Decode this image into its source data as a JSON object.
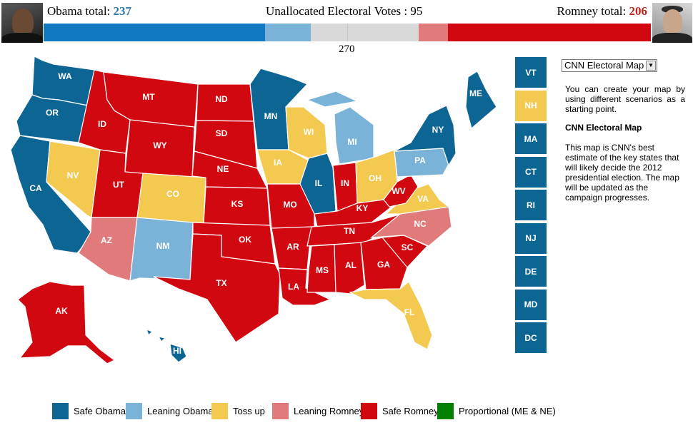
{
  "header": {
    "obama_label": "Obama total:",
    "obama_total": "237",
    "unallocated_label": "Unallocated Electoral Votes :",
    "unallocated_value": "95",
    "romney_label": "Romney total:",
    "romney_total": "206",
    "threshold_label": "270"
  },
  "colors": {
    "safe_obama": "#0d6593",
    "leaning_obama": "#7bb3d8",
    "toss_up": "#f3c94f",
    "leaning_romney": "#e17b7b",
    "safe_romney": "#d10810",
    "proportional": "#008000",
    "obama_total_text": "#2f7bb0",
    "romney_total_text": "#c0241c",
    "bar_safe_obama": "#1179c1",
    "bar_unallocated": "#d9d9d9"
  },
  "vote_bar": {
    "total_votes": 538,
    "segments": [
      {
        "category": "safe_obama",
        "votes": 196
      },
      {
        "category": "leaning_obama",
        "votes": 41
      },
      {
        "category": "toss_up",
        "votes": 95
      },
      {
        "category": "leaning_romney",
        "votes": 26
      },
      {
        "category": "safe_romney",
        "votes": 180
      }
    ]
  },
  "states": [
    {
      "abbr": "WA",
      "category": "safe_obama"
    },
    {
      "abbr": "OR",
      "category": "safe_obama"
    },
    {
      "abbr": "CA",
      "category": "safe_obama"
    },
    {
      "abbr": "NV",
      "category": "toss_up"
    },
    {
      "abbr": "ID",
      "category": "safe_romney"
    },
    {
      "abbr": "MT",
      "category": "safe_romney"
    },
    {
      "abbr": "WY",
      "category": "safe_romney"
    },
    {
      "abbr": "UT",
      "category": "safe_romney"
    },
    {
      "abbr": "AZ",
      "category": "leaning_romney"
    },
    {
      "abbr": "CO",
      "category": "toss_up"
    },
    {
      "abbr": "NM",
      "category": "leaning_obama"
    },
    {
      "abbr": "ND",
      "category": "safe_romney"
    },
    {
      "abbr": "SD",
      "category": "safe_romney"
    },
    {
      "abbr": "NE",
      "category": "safe_romney"
    },
    {
      "abbr": "KS",
      "category": "safe_romney"
    },
    {
      "abbr": "OK",
      "category": "safe_romney"
    },
    {
      "abbr": "TX",
      "category": "safe_romney"
    },
    {
      "abbr": "MN",
      "category": "safe_obama"
    },
    {
      "abbr": "IA",
      "category": "toss_up"
    },
    {
      "abbr": "MO",
      "category": "safe_romney"
    },
    {
      "abbr": "AR",
      "category": "safe_romney"
    },
    {
      "abbr": "LA",
      "category": "safe_romney"
    },
    {
      "abbr": "WI",
      "category": "toss_up"
    },
    {
      "abbr": "IL",
      "category": "safe_obama"
    },
    {
      "abbr": "MI",
      "category": "leaning_obama"
    },
    {
      "abbr": "IN",
      "category": "safe_romney"
    },
    {
      "abbr": "OH",
      "category": "toss_up"
    },
    {
      "abbr": "KY",
      "category": "safe_romney"
    },
    {
      "abbr": "TN",
      "category": "safe_romney"
    },
    {
      "abbr": "MS",
      "category": "safe_romney"
    },
    {
      "abbr": "AL",
      "category": "safe_romney"
    },
    {
      "abbr": "GA",
      "category": "safe_romney"
    },
    {
      "abbr": "FL",
      "category": "toss_up"
    },
    {
      "abbr": "SC",
      "category": "safe_romney"
    },
    {
      "abbr": "NC",
      "category": "leaning_romney"
    },
    {
      "abbr": "VA",
      "category": "toss_up"
    },
    {
      "abbr": "WV",
      "category": "safe_romney"
    },
    {
      "abbr": "PA",
      "category": "leaning_obama"
    },
    {
      "abbr": "NY",
      "category": "safe_obama"
    },
    {
      "abbr": "ME",
      "category": "safe_obama"
    },
    {
      "abbr": "AK",
      "category": "safe_romney"
    },
    {
      "abbr": "HI",
      "category": "safe_obama"
    }
  ],
  "small_states": [
    {
      "abbr": "VT",
      "category": "safe_obama"
    },
    {
      "abbr": "NH",
      "category": "toss_up"
    },
    {
      "abbr": "MA",
      "category": "safe_obama"
    },
    {
      "abbr": "CT",
      "category": "safe_obama"
    },
    {
      "abbr": "RI",
      "category": "safe_obama"
    },
    {
      "abbr": "NJ",
      "category": "safe_obama"
    },
    {
      "abbr": "DE",
      "category": "safe_obama"
    },
    {
      "abbr": "MD",
      "category": "safe_obama"
    },
    {
      "abbr": "DC",
      "category": "safe_obama"
    }
  ],
  "sidebar": {
    "dropdown_value": "CNN Electoral Map",
    "intro_text": "You can create your map by using different scenarios as a starting point.",
    "map_title": "CNN Electoral Map",
    "map_description": "This map is CNN's best estimate of the key states that will likely decide the 2012 presidential election. The map will be updated as the campaign progresses."
  },
  "legend": [
    {
      "label": "Safe Obama",
      "category": "safe_obama"
    },
    {
      "label": "Leaning Obama",
      "category": "leaning_obama"
    },
    {
      "label": "Toss up",
      "category": "toss_up"
    },
    {
      "label": "Leaning Romney",
      "category": "leaning_romney"
    },
    {
      "label": "Safe Romney",
      "category": "safe_romney"
    },
    {
      "label": "Proportional (ME & NE)",
      "category": "proportional"
    }
  ]
}
